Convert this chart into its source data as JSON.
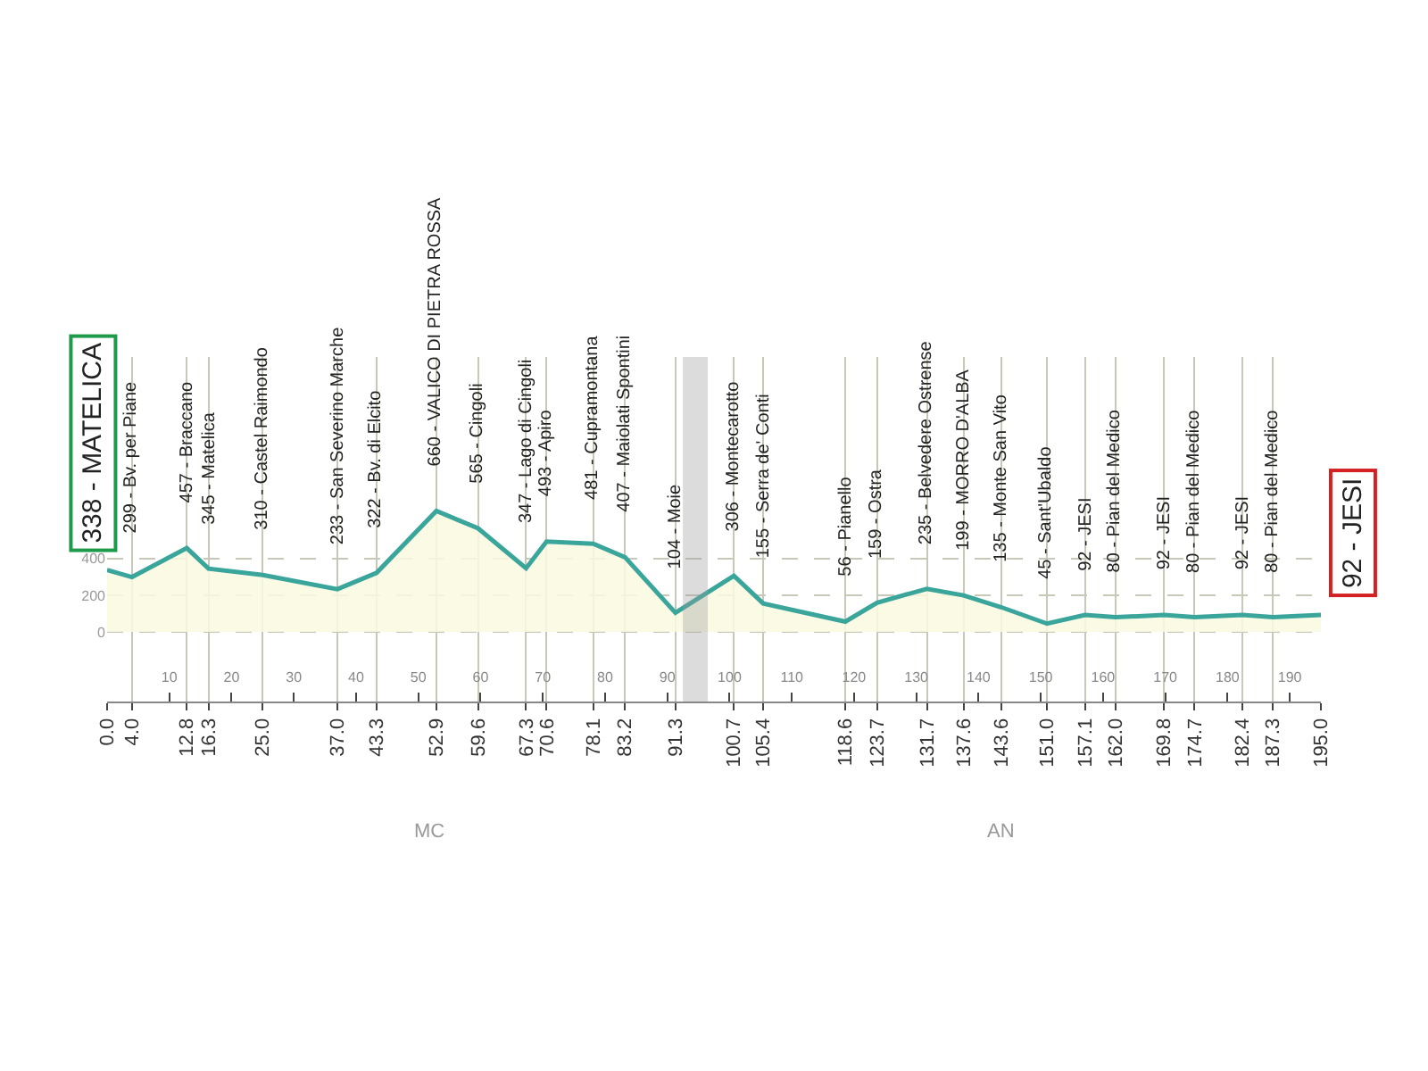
{
  "chart_data": {
    "type": "area",
    "x": [
      0,
      4,
      12.8,
      16.3,
      25,
      37,
      43.3,
      52.9,
      59.6,
      67.3,
      70.6,
      78.1,
      83.2,
      91.3,
      100.7,
      105.4,
      118.6,
      123.7,
      131.7,
      137.6,
      143.6,
      151,
      157.1,
      162,
      169.8,
      174.7,
      182.4,
      187.3,
      195
    ],
    "series": [
      {
        "color": "#3aa59b",
        "values": [
          338,
          299,
          457,
          345,
          310,
          233,
          322,
          660,
          565,
          347,
          493,
          481,
          407,
          104,
          306,
          155,
          56,
          159,
          235,
          199,
          135,
          45,
          92,
          80,
          92,
          80,
          92,
          80,
          92
        ]
      }
    ],
    "xlim": [
      0,
      195
    ],
    "ylim": [
      -380,
      1500
    ],
    "xticks": [
      {
        "value": 0,
        "label": "0.0"
      },
      {
        "value": 4,
        "label": "4.0"
      },
      {
        "value": 12.8,
        "label": "12.8"
      },
      {
        "value": 16.3,
        "label": "16.3"
      },
      {
        "value": 25,
        "label": "25.0"
      },
      {
        "value": 37,
        "label": "37.0"
      },
      {
        "value": 43.3,
        "label": "43.3"
      },
      {
        "value": 52.9,
        "label": "52.9"
      },
      {
        "value": 59.6,
        "label": "59.6"
      },
      {
        "value": 67.3,
        "label": "67.3"
      },
      {
        "value": 70.6,
        "label": "70.6"
      },
      {
        "value": 78.1,
        "label": "78.1"
      },
      {
        "value": 83.2,
        "label": "83.2"
      },
      {
        "value": 91.3,
        "label": "91.3"
      },
      {
        "value": 100.7,
        "label": "100.7"
      },
      {
        "value": 105.4,
        "label": "105.4"
      },
      {
        "value": 118.6,
        "label": "118.6"
      },
      {
        "value": 123.7,
        "label": "123.7"
      },
      {
        "value": 131.7,
        "label": "131.7"
      },
      {
        "value": 137.6,
        "label": "137.6"
      },
      {
        "value": 143.6,
        "label": "143.6"
      },
      {
        "value": 151,
        "label": "151.0"
      },
      {
        "value": 157.1,
        "label": "157.1"
      },
      {
        "value": 162,
        "label": "162.0"
      },
      {
        "value": 169.8,
        "label": "169.8"
      },
      {
        "value": 174.7,
        "label": "174.7"
      },
      {
        "value": 182.4,
        "label": "182.4"
      },
      {
        "value": 187.3,
        "label": "187.3"
      },
      {
        "value": 195,
        "label": "195.0"
      }
    ],
    "x2lim": [
      0,
      195
    ],
    "x2ticks": [
      10,
      20,
      30,
      40,
      50,
      60,
      70,
      80,
      90,
      100,
      110,
      120,
      130,
      140,
      150,
      160,
      170,
      180,
      190
    ],
    "yticks": [
      0,
      200,
      400
    ],
    "grid": true,
    "bands": [
      {
        "axis": "x",
        "from": 92.5,
        "to": 96.5,
        "color": "#9a9a9a"
      }
    ],
    "annotations": [
      {
        "text": "338 - MATELICA",
        "x": 0,
        "y": 338
      },
      {
        "text": "299 - Bv. per Piane",
        "x": 4,
        "y": 299
      },
      {
        "text": "457 - Braccano",
        "x": 12.8,
        "y": 457
      },
      {
        "text": "345 - Matelica",
        "x": 16.3,
        "y": 345
      },
      {
        "text": "310 - Castel Raimondo",
        "x": 25,
        "y": 310
      },
      {
        "text": "233 - San Severino Marche",
        "x": 37,
        "y": 233
      },
      {
        "text": "322 - Bv. di Elcito",
        "x": 43.3,
        "y": 322
      },
      {
        "text": "660 - VALICO DI PIETRA ROSSA",
        "x": 52.9,
        "y": 660
      },
      {
        "text": "565 - Cingoli",
        "x": 59.6,
        "y": 565
      },
      {
        "text": "347 - Lago di Cingoli",
        "x": 67.3,
        "y": 347
      },
      {
        "text": "493 - Apiro",
        "x": 70.6,
        "y": 493
      },
      {
        "text": "481 - Cupramontana",
        "x": 78.1,
        "y": 481
      },
      {
        "text": "407 - Maiolati Spontini",
        "x": 83.2,
        "y": 407
      },
      {
        "text": "104 - Moie",
        "x": 91.3,
        "y": 104
      },
      {
        "text": "306 - Montecarotto",
        "x": 100.7,
        "y": 306
      },
      {
        "text": "155 - Serra de' Conti",
        "x": 105.4,
        "y": 155
      },
      {
        "text": "56 - Pianello",
        "x": 118.6,
        "y": 56
      },
      {
        "text": "159 - Ostra",
        "x": 123.7,
        "y": 159
      },
      {
        "text": "235 - Belvedere Ostrense",
        "x": 131.7,
        "y": 235
      },
      {
        "text": "199 - MORRO D'ALBA",
        "x": 137.6,
        "y": 199
      },
      {
        "text": "135 - Monte San Vito",
        "x": 143.6,
        "y": 135
      },
      {
        "text": "45 - Sant'Ubaldo",
        "x": 151,
        "y": 45
      },
      {
        "text": "92 - JESI",
        "x": 157.1,
        "y": 92
      },
      {
        "text": "80 - Pian del Medico",
        "x": 162,
        "y": 80
      },
      {
        "text": "92 - JESI",
        "x": 169.8,
        "y": 92
      },
      {
        "text": "80 - Pian del Medico",
        "x": 174.7,
        "y": 80
      },
      {
        "text": "92 - JESI",
        "x": 182.4,
        "y": 92
      },
      {
        "text": "80 - Pian del Medico",
        "x": 187.3,
        "y": 80
      },
      {
        "text": "92 - JESI",
        "x": 195,
        "y": 92
      },
      "MC",
      "AN"
    ]
  }
}
